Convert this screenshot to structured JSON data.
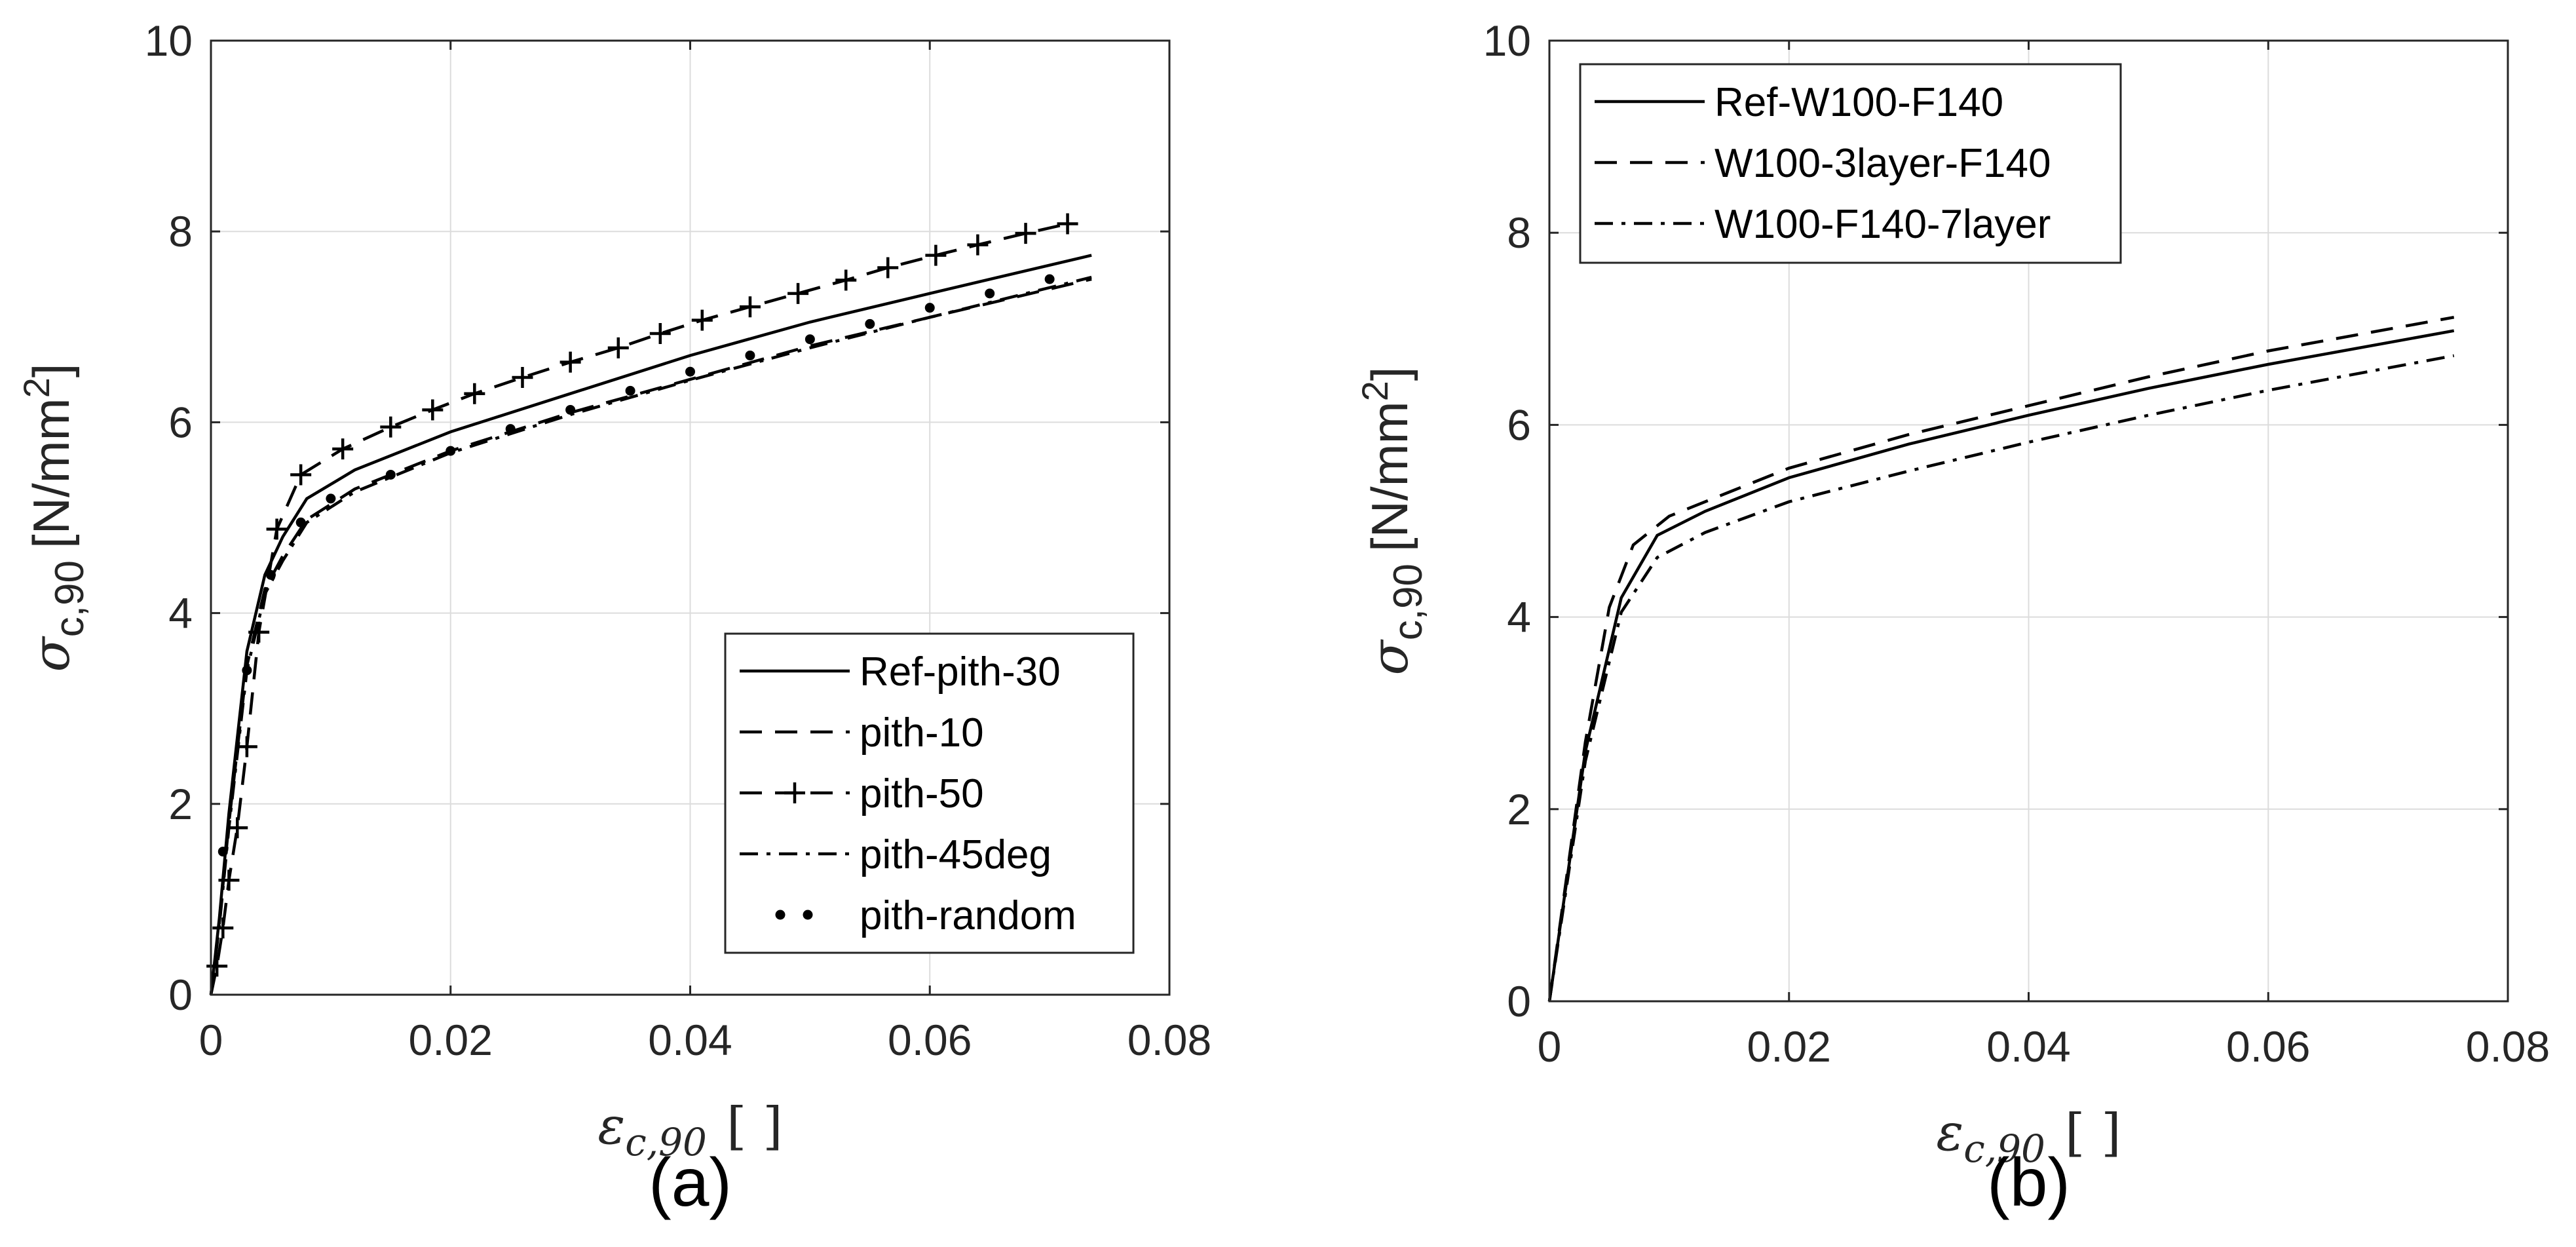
{
  "chart_data": [
    {
      "type": "line",
      "panel_label": "(a)",
      "ylabel": {
        "symbol": "σ",
        "subscript": "c,90",
        "unit_before": "[N/mm",
        "unit_sup": "2",
        "unit_after": "]"
      },
      "xlabel": {
        "symbol": "ε",
        "subscript": "c,90",
        "unit": "[ ]"
      },
      "xlim": [
        0,
        0.08
      ],
      "ylim": [
        0,
        10
      ],
      "xticks": [
        "0",
        "0.02",
        "0.04",
        "0.06",
        "0.08"
      ],
      "yticks": [
        "0",
        "2",
        "4",
        "6",
        "8",
        "10"
      ],
      "grid": true,
      "legend_position": "bottom-right",
      "series": [
        {
          "name": "Ref-pith-30",
          "style": "solid",
          "x": [
            0,
            0.0007,
            0.0015,
            0.003,
            0.0045,
            0.006,
            0.008,
            0.012,
            0.02,
            0.03,
            0.04,
            0.05,
            0.06,
            0.0735
          ],
          "y": [
            0,
            0.8,
            1.9,
            3.6,
            4.4,
            4.8,
            5.2,
            5.5,
            5.9,
            6.3,
            6.7,
            7.05,
            7.35,
            7.75
          ]
        },
        {
          "name": "pith-10",
          "style": "dashed",
          "x": [
            0,
            0.0007,
            0.0015,
            0.003,
            0.0045,
            0.006,
            0.008,
            0.012,
            0.02,
            0.03,
            0.04,
            0.05,
            0.06,
            0.0735
          ],
          "y": [
            0,
            0.75,
            1.8,
            3.45,
            4.25,
            4.6,
            4.98,
            5.3,
            5.7,
            6.1,
            6.45,
            6.8,
            7.1,
            7.5
          ]
        },
        {
          "name": "pith-50",
          "style": "dash-plus",
          "x": [
            0,
            0.0005,
            0.001,
            0.0015,
            0.0022,
            0.003,
            0.004,
            0.0055,
            0.0075,
            0.011,
            0.015,
            0.0185,
            0.022,
            0.026,
            0.03,
            0.034,
            0.0375,
            0.041,
            0.045,
            0.049,
            0.053,
            0.0565,
            0.0605,
            0.064,
            0.068,
            0.0715
          ],
          "y": [
            0,
            0.3,
            0.7,
            1.2,
            1.75,
            2.6,
            3.8,
            4.88,
            5.45,
            5.72,
            5.95,
            6.13,
            6.3,
            6.47,
            6.63,
            6.78,
            6.93,
            7.07,
            7.21,
            7.35,
            7.49,
            7.62,
            7.75,
            7.86,
            7.98,
            8.08
          ]
        },
        {
          "name": "pith-45deg",
          "style": "dash-dot",
          "x": [
            0,
            0.0007,
            0.0015,
            0.003,
            0.0045,
            0.006,
            0.008,
            0.012,
            0.02,
            0.03,
            0.04,
            0.05,
            0.06,
            0.0735
          ],
          "y": [
            0,
            0.72,
            1.75,
            3.4,
            4.2,
            4.55,
            4.95,
            5.27,
            5.68,
            6.08,
            6.44,
            6.78,
            7.1,
            7.52
          ]
        },
        {
          "name": "pith-random",
          "style": "dotted",
          "x": [
            0.001,
            0.003,
            0.005,
            0.0075,
            0.01,
            0.015,
            0.02,
            0.025,
            0.03,
            0.035,
            0.04,
            0.045,
            0.05,
            0.055,
            0.06,
            0.065,
            0.07
          ],
          "y": [
            1.5,
            3.4,
            4.4,
            4.95,
            5.2,
            5.45,
            5.7,
            5.93,
            6.13,
            6.33,
            6.53,
            6.7,
            6.87,
            7.03,
            7.2,
            7.35,
            7.5
          ]
        }
      ]
    },
    {
      "type": "line",
      "panel_label": "(b)",
      "ylabel": {
        "symbol": "σ",
        "subscript": "c,90",
        "unit_before": "[N/mm",
        "unit_sup": "2",
        "unit_after": "]"
      },
      "xlabel": {
        "symbol": "ε",
        "subscript": "c,90",
        "unit": "[ ]"
      },
      "xlim": [
        0,
        0.08
      ],
      "ylim": [
        0,
        10
      ],
      "xticks": [
        "0",
        "0.02",
        "0.04",
        "0.06",
        "0.08"
      ],
      "yticks": [
        "0",
        "2",
        "4",
        "6",
        "8",
        "10"
      ],
      "grid": true,
      "legend_position": "top-left",
      "series": [
        {
          "name": "Ref-W100-F140",
          "style": "solid",
          "x": [
            0,
            0.003,
            0.006,
            0.009,
            0.013,
            0.02,
            0.03,
            0.04,
            0.05,
            0.06,
            0.0755
          ],
          "y": [
            0,
            2.6,
            4.2,
            4.85,
            5.1,
            5.45,
            5.8,
            6.1,
            6.38,
            6.63,
            6.98
          ]
        },
        {
          "name": "W100-3layer-F140",
          "style": "dashed",
          "x": [
            0,
            0.003,
            0.005,
            0.007,
            0.01,
            0.015,
            0.02,
            0.03,
            0.04,
            0.05,
            0.06,
            0.0755
          ],
          "y": [
            0,
            2.7,
            4.1,
            4.75,
            5.05,
            5.3,
            5.55,
            5.9,
            6.2,
            6.5,
            6.77,
            7.12
          ]
        },
        {
          "name": "W100-F140-7layer",
          "style": "dash-dot",
          "x": [
            0,
            0.003,
            0.006,
            0.009,
            0.013,
            0.02,
            0.03,
            0.04,
            0.05,
            0.06,
            0.0755
          ],
          "y": [
            0,
            2.5,
            4.05,
            4.62,
            4.88,
            5.2,
            5.52,
            5.82,
            6.1,
            6.36,
            6.72
          ]
        }
      ]
    }
  ]
}
